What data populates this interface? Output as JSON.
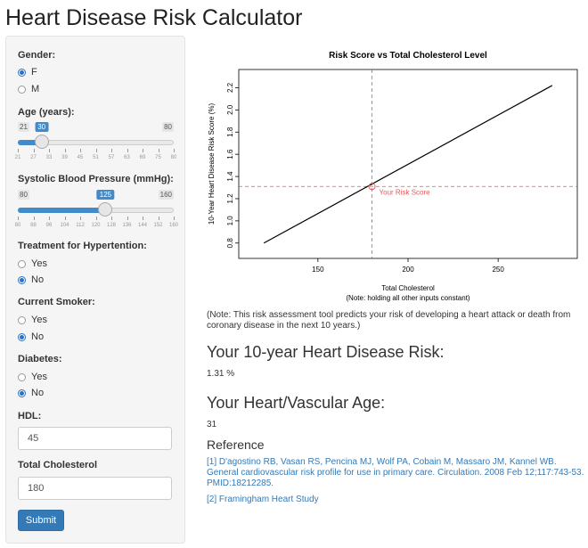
{
  "app_title": "Heart Disease Risk Calculator",
  "sidebar": {
    "gender": {
      "label": "Gender:",
      "options": [
        "F",
        "M"
      ],
      "selected": "F"
    },
    "age": {
      "label": "Age (years):",
      "min": 21,
      "max": 80,
      "value": 30,
      "min_label": "21",
      "max_label": "80",
      "value_label": "30",
      "ticks": [
        "21",
        "27",
        "33",
        "39",
        "45",
        "51",
        "57",
        "63",
        "69",
        "75",
        "80"
      ]
    },
    "sbp": {
      "label": "Systolic Blood Pressure (mmHg):",
      "min": 80,
      "max": 160,
      "value": 125,
      "min_label": "80",
      "max_label": "160",
      "value_label": "125",
      "ticks": [
        "80",
        "88",
        "96",
        "104",
        "112",
        "120",
        "128",
        "136",
        "144",
        "152",
        "160"
      ]
    },
    "treatment": {
      "label": "Treatment for Hypertention:",
      "options": [
        "Yes",
        "No"
      ],
      "selected": "No"
    },
    "smoker": {
      "label": "Current Smoker:",
      "options": [
        "Yes",
        "No"
      ],
      "selected": "No"
    },
    "diabetes": {
      "label": "Diabetes:",
      "options": [
        "Yes",
        "No"
      ],
      "selected": "No"
    },
    "hdl": {
      "label": "HDL:",
      "value": "45"
    },
    "total_chol": {
      "label": "Total Cholesterol",
      "value": "180"
    },
    "submit_label": "Submit"
  },
  "chart_data": {
    "type": "line",
    "title": "Risk Score vs Total Cholesterol Level",
    "xlabel": "Total Cholesterol",
    "xlabel_note": "(Note: holding all other inputs constant)",
    "ylabel": "10-Year Heart Disease Risk Score (%)",
    "x": [
      120,
      280
    ],
    "y": [
      0.8,
      2.22
    ],
    "xlim": [
      112,
      288
    ],
    "ylim": [
      0.75,
      2.3
    ],
    "xticks": [
      150,
      200,
      250
    ],
    "yticks": [
      "0.8",
      "1.0",
      "1.2",
      "1.4",
      "1.6",
      "1.8",
      "2.0",
      "2.2"
    ],
    "marker": {
      "x": 180,
      "y": 1.31,
      "label": "Your Risk Score"
    },
    "line_color": "#000000",
    "marker_color": "#e05a5a"
  },
  "note": "(Note: This risk assessment tool predicts your risk of developing a heart attack or death from coronary disease in the next 10 years.)",
  "risk": {
    "heading": "Your 10-year Heart Disease Risk:",
    "value": "1.31 %"
  },
  "vascular_age": {
    "heading": "Your Heart/Vascular Age:",
    "value": "31"
  },
  "reference": {
    "heading": "Reference",
    "items": [
      "[1] D'agostino RB, Vasan RS, Pencina MJ, Wolf PA, Cobain M, Massaro JM, Kannel WB. General cardiovascular risk profile for use in primary care. Circulation. 2008 Feb 12;117:743-53. PMID:18212285.",
      "[2] Framingham Heart Study"
    ]
  },
  "colors": {
    "accent": "#337ab7",
    "slider_fill": "#428bca"
  }
}
